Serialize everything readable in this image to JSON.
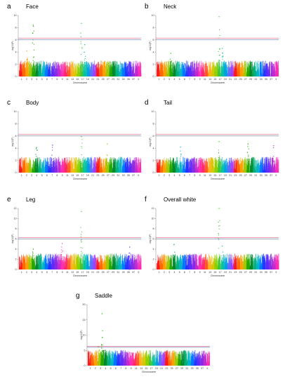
{
  "figure": {
    "panels": [
      {
        "letter": "a",
        "title": "Face",
        "ylim": [
          0,
          10
        ],
        "yticks": [
          0,
          2,
          4,
          6,
          8,
          10
        ],
        "peaks": [
          {
            "chr": 5,
            "h": 8.4
          },
          {
            "chr": 20,
            "h": 8.7
          },
          {
            "chr": 21,
            "h": 5.2
          },
          {
            "chr": 3,
            "h": 4.2
          }
        ]
      },
      {
        "letter": "b",
        "title": "Neck",
        "ylim": [
          0,
          10
        ],
        "yticks": [
          0,
          2,
          4,
          6,
          8,
          10
        ],
        "peaks": [
          {
            "chr": 20,
            "h": 9.8
          },
          {
            "chr": 21,
            "h": 4.6
          },
          {
            "chr": 5,
            "h": 3.8
          }
        ]
      },
      {
        "letter": "c",
        "title": "Body",
        "ylim": [
          0,
          10
        ],
        "yticks": [
          0,
          2,
          4,
          6,
          8,
          10
        ],
        "peaks": [
          {
            "chr": 20,
            "h": 5.9
          },
          {
            "chr": 28,
            "h": 4.7
          },
          {
            "chr": 11,
            "h": 4.5
          },
          {
            "chr": 6,
            "h": 4.1
          }
        ]
      },
      {
        "letter": "d",
        "title": "Tail",
        "ylim": [
          0,
          10
        ],
        "yticks": [
          0,
          2,
          4,
          6,
          8,
          10
        ],
        "peaks": [
          {
            "chr": 20,
            "h": 5.1
          },
          {
            "chr": 29,
            "h": 4.7
          },
          {
            "chr": 37,
            "h": 4.4
          },
          {
            "chr": 8,
            "h": 4.2
          }
        ]
      },
      {
        "letter": "e",
        "title": "Leg",
        "ylim": [
          0,
          12
        ],
        "yticks": [
          0,
          2,
          4,
          6,
          8,
          10,
          12
        ],
        "peaks": [
          {
            "chr": 20,
            "h": 11.4
          },
          {
            "chr": 14,
            "h": 5.1
          },
          {
            "chr": 5,
            "h": 4.0
          },
          {
            "chr": 35,
            "h": 4.4
          }
        ]
      },
      {
        "letter": "f",
        "title": "Overall white",
        "ylim": [
          0,
          12
        ],
        "yticks": [
          0,
          2,
          4,
          6,
          8,
          10,
          12
        ],
        "peaks": [
          {
            "chr": 20,
            "h": 12.0
          },
          {
            "chr": 6,
            "h": 4.9
          },
          {
            "chr": 21,
            "h": 4.6
          }
        ]
      },
      {
        "letter": "g",
        "title": "Saddle",
        "ylim": [
          0,
          20
        ],
        "yticks": [
          0,
          5,
          10,
          15,
          20
        ],
        "peaks": [
          {
            "chr": 5,
            "h": 17.0
          },
          {
            "chr": 4,
            "h": 6.2
          },
          {
            "chr": 6,
            "h": 5.0
          }
        ]
      }
    ],
    "xlabel": "Chromosome",
    "ylabel": "-log10(P)",
    "x_tick_labels": [
      "1",
      "2",
      "3",
      "4",
      "5",
      "6",
      "7",
      "8",
      "9",
      "11",
      "13",
      "15",
      "17",
      "19",
      "21",
      "23",
      "25",
      "27",
      "29",
      "31",
      "33",
      "35",
      "37",
      "X"
    ],
    "threshold_suggestive": 6.0,
    "threshold_significant": 6.3,
    "line_colors": {
      "suggestive": "#3b5998",
      "significant": "#d63b5c"
    }
  },
  "chart_data": [
    {
      "type": "scatter",
      "subtype": "manhattan",
      "title": "Face",
      "xlabel": "Chromosome",
      "ylabel": "-log10(P)",
      "ylim": [
        0,
        10
      ]
    },
    {
      "type": "scatter",
      "subtype": "manhattan",
      "title": "Neck",
      "xlabel": "Chromosome",
      "ylabel": "-log10(P)",
      "ylim": [
        0,
        10
      ]
    },
    {
      "type": "scatter",
      "subtype": "manhattan",
      "title": "Body",
      "xlabel": "Chromosome",
      "ylabel": "-log10(P)",
      "ylim": [
        0,
        10
      ]
    },
    {
      "type": "scatter",
      "subtype": "manhattan",
      "title": "Tail",
      "xlabel": "Chromosome",
      "ylabel": "-log10(P)",
      "ylim": [
        0,
        10
      ]
    },
    {
      "type": "scatter",
      "subtype": "manhattan",
      "title": "Leg",
      "xlabel": "Chromosome",
      "ylabel": "-log10(P)",
      "ylim": [
        0,
        12
      ]
    },
    {
      "type": "scatter",
      "subtype": "manhattan",
      "title": "Overall white",
      "xlabel": "Chromosome",
      "ylabel": "-log10(P)",
      "ylim": [
        0,
        12
      ]
    },
    {
      "type": "scatter",
      "subtype": "manhattan",
      "title": "Saddle",
      "xlabel": "Chromosome",
      "ylabel": "-log10(P)",
      "ylim": [
        0,
        20
      ]
    }
  ]
}
